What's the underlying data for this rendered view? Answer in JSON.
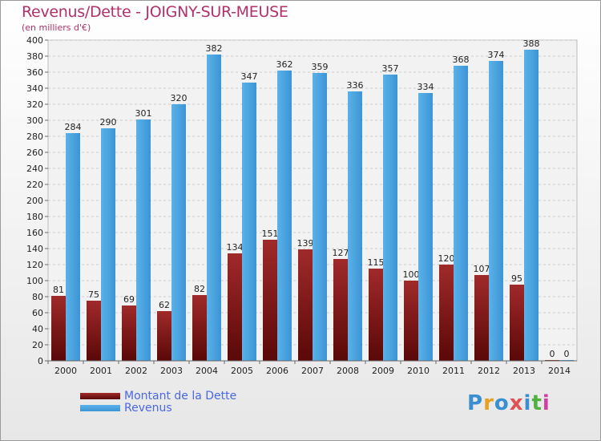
{
  "title": "Revenus/Dette - JOIGNY-SUR-MEUSE",
  "subtitle": "(en milliers d'€)",
  "legend": {
    "debt_label": "Montant de la Dette",
    "revenue_label": "Revenus"
  },
  "logo": {
    "letters": [
      "P",
      "r",
      "o",
      "x",
      "i",
      "t",
      "i"
    ],
    "colors": [
      "#3a8fd0",
      "#e8a020",
      "#3a8fd0",
      "#e05050",
      "#3a8fd0",
      "#50b040",
      "#d040a0"
    ]
  },
  "colors": {
    "debt": "#7a1414",
    "revenue": "#4aa3e0",
    "title": "#b0306a"
  },
  "chart_data": {
    "type": "bar",
    "title": "Revenus/Dette - JOIGNY-SUR-MEUSE",
    "ylabel": "(en milliers d'€)",
    "ylim": [
      0,
      400
    ],
    "ytick_step": 20,
    "grid": true,
    "legend_position": "bottom-left",
    "categories": [
      "2000",
      "2001",
      "2002",
      "2003",
      "2004",
      "2005",
      "2006",
      "2007",
      "2008",
      "2009",
      "2010",
      "2011",
      "2012",
      "2013",
      "2014"
    ],
    "series": [
      {
        "name": "Montant de la Dette",
        "values": [
          81,
          75,
          69,
          62,
          82,
          134,
          151,
          139,
          127,
          115,
          100,
          120,
          107,
          95,
          0
        ]
      },
      {
        "name": "Revenus",
        "values": [
          284,
          290,
          301,
          320,
          382,
          347,
          362,
          359,
          336,
          357,
          334,
          368,
          374,
          388,
          0
        ]
      }
    ]
  }
}
